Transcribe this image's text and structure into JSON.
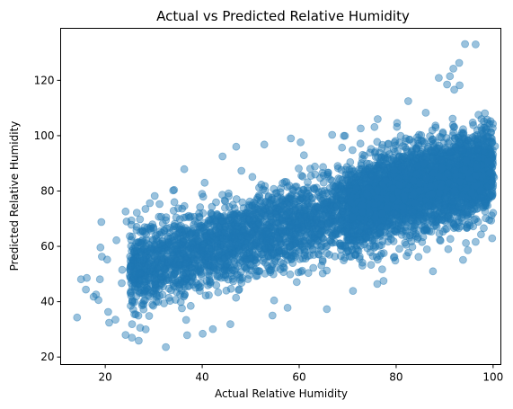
{
  "chart_data": {
    "type": "scatter",
    "title": "Actual vs Predicted Relative Humidity",
    "xlabel": "Actual Relative Humidity",
    "ylabel": "Predicted Relative Humidity",
    "xlim": [
      10.8,
      101.6
    ],
    "ylim": [
      17.3,
      138.8
    ],
    "xticks": [
      20,
      40,
      60,
      80,
      100
    ],
    "yticks": [
      20,
      40,
      60,
      80,
      100,
      120
    ],
    "grid": false,
    "legend": "none",
    "marker_color": "#1f77b4",
    "marker_alpha": 0.45,
    "trend": {
      "intercept": 38.5,
      "slope": 0.5
    },
    "point_count": 6000,
    "points": [
      [
        14.2,
        34.3
      ],
      [
        15.0,
        48.1
      ],
      [
        16.2,
        48.6
      ],
      [
        16.0,
        44.4
      ],
      [
        18.9,
        48.1
      ],
      [
        18.1,
        42.6
      ],
      [
        17.6,
        41.8
      ],
      [
        18.6,
        40.6
      ],
      [
        19.2,
        68.8
      ],
      [
        19.0,
        59.6
      ],
      [
        19.3,
        56.3
      ],
      [
        20.4,
        55.2
      ],
      [
        20.6,
        36.3
      ],
      [
        20.8,
        32.4
      ],
      [
        22.1,
        33.5
      ],
      [
        22.3,
        62.2
      ],
      [
        23.5,
        51.5
      ],
      [
        23.4,
        46.7
      ],
      [
        24.2,
        28.0
      ],
      [
        24.2,
        72.6
      ],
      [
        24.4,
        69.0
      ],
      [
        25.5,
        27.0
      ],
      [
        25.4,
        67.8
      ],
      [
        26.9,
        25.9
      ],
      [
        26.5,
        58.4
      ],
      [
        27.2,
        30.6
      ],
      [
        28.3,
        73.5
      ],
      [
        29.2,
        75.6
      ],
      [
        30.2,
        78.2
      ],
      [
        31.2,
        75.3
      ],
      [
        32.5,
        23.6
      ],
      [
        34.0,
        80.2
      ],
      [
        36.3,
        87.9
      ],
      [
        36.9,
        27.9
      ],
      [
        40.1,
        28.4
      ],
      [
        40.5,
        83.0
      ],
      [
        42.2,
        30.1
      ],
      [
        44.2,
        92.5
      ],
      [
        45.8,
        31.9
      ],
      [
        47.0,
        96.0
      ],
      [
        52.8,
        96.8
      ],
      [
        54.5,
        35.0
      ],
      [
        58.3,
        99.0
      ],
      [
        57.6,
        37.8
      ],
      [
        60.3,
        97.6
      ],
      [
        65.7,
        37.3
      ],
      [
        66.8,
        100.3
      ],
      [
        69.2,
        99.9
      ],
      [
        71.1,
        43.9
      ],
      [
        72.7,
        102.6
      ],
      [
        76.2,
        106.0
      ],
      [
        77.4,
        47.5
      ],
      [
        80.2,
        104.6
      ],
      [
        82.5,
        112.5
      ],
      [
        84.6,
        56.2
      ],
      [
        86.1,
        108.3
      ],
      [
        87.6,
        51.0
      ],
      [
        88.8,
        120.9
      ],
      [
        90.5,
        118.5
      ],
      [
        91.1,
        121.5
      ],
      [
        91.8,
        124.2
      ],
      [
        93.0,
        126.3
      ],
      [
        93.1,
        118.2
      ],
      [
        94.2,
        133.1
      ],
      [
        96.4,
        133.0
      ],
      [
        93.8,
        55.1
      ],
      [
        94.8,
        58.6
      ],
      [
        94.4,
        61.2
      ],
      [
        96.4,
        61.6
      ],
      [
        97.5,
        64.3
      ],
      [
        99.8,
        62.9
      ],
      [
        99.6,
        69.3
      ],
      [
        100.4,
        96.2
      ],
      [
        98.6,
        102.4
      ],
      [
        97.6,
        106.0
      ],
      [
        99.3,
        86.6
      ],
      [
        100.2,
        84.9
      ],
      [
        99.5,
        78.5
      ],
      [
        100.0,
        72.1
      ]
    ]
  }
}
